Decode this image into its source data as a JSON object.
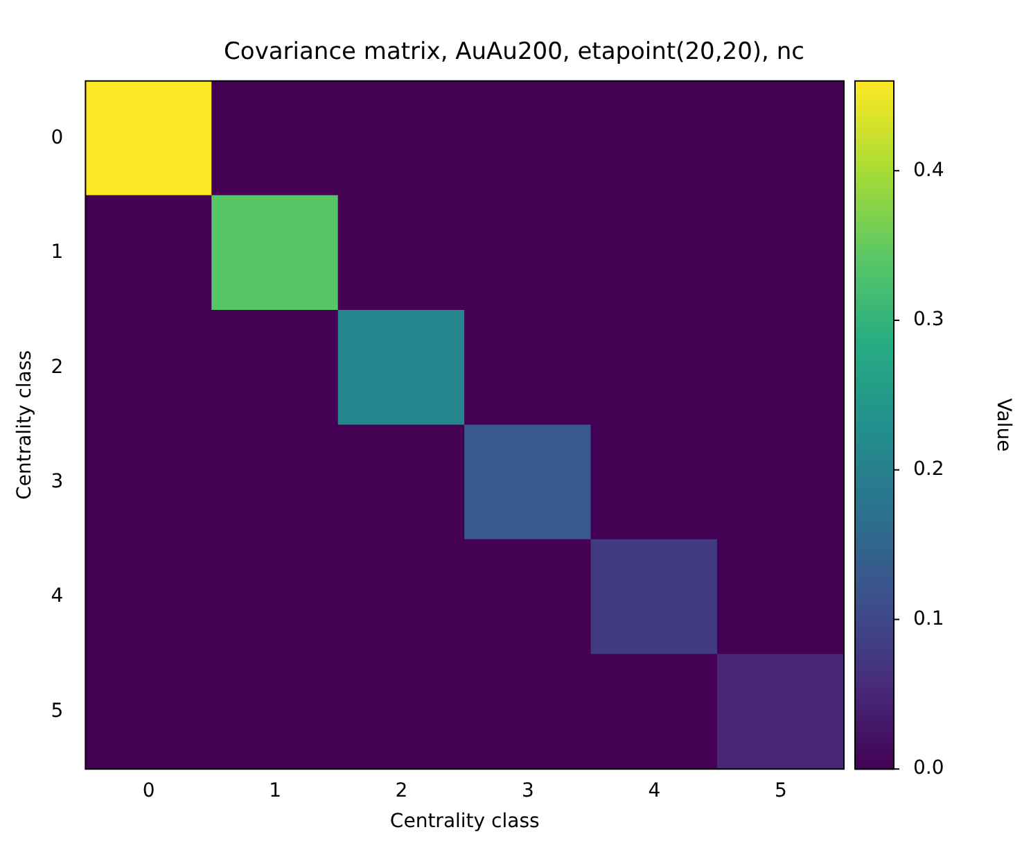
{
  "chart_data": {
    "type": "heatmap",
    "title": "Covariance matrix, AuAu200, etapoint(20,20), nc",
    "xlabel": "Centrality class",
    "ylabel": "Centrality class",
    "clabel": "Value",
    "categories": [
      "0",
      "1",
      "2",
      "3",
      "4",
      "5"
    ],
    "y_categories": [
      "0",
      "1",
      "2",
      "3",
      "4",
      "5"
    ],
    "cells": [
      [
        0.46,
        0,
        0,
        0,
        0,
        0
      ],
      [
        0,
        0.34,
        0,
        0,
        0,
        0
      ],
      [
        0,
        0,
        0.21,
        0,
        0,
        0
      ],
      [
        0,
        0,
        0,
        0.13,
        0,
        0
      ],
      [
        0,
        0,
        0,
        0,
        0.08,
        0
      ],
      [
        0,
        0,
        0,
        0,
        0,
        0.05
      ]
    ],
    "clim": [
      0,
      0.46
    ],
    "cticks": [
      {
        "value": 0,
        "label": "0.0"
      },
      {
        "value": 0.1,
        "label": "0.1"
      },
      {
        "value": 0.2,
        "label": "0.2"
      },
      {
        "value": 0.3,
        "label": "0.3"
      },
      {
        "value": 0.4,
        "label": "0.4"
      }
    ]
  }
}
